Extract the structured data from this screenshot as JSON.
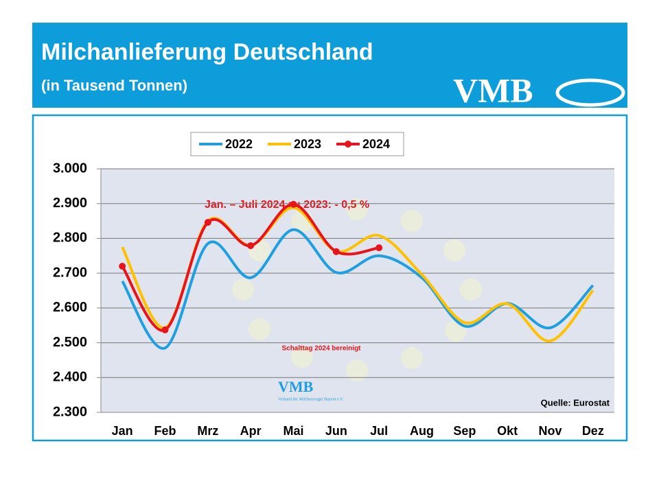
{
  "chart_data": {
    "type": "line",
    "title": "Milchanlieferung Deutschland",
    "subtitle": "(in Tausend Tonnen)",
    "logo": "VMB",
    "logo_small": "VMB",
    "logo_caption": "Verband der Milcherzeuger Bayern e.V.",
    "annotation": "Jan. – Juli 2024 zu 2023: - 0,5 %",
    "annotation_note": "Schalttag 2024 bereinigt",
    "source": "Quelle: Eurostat",
    "categories": [
      "Jan",
      "Feb",
      "Mrz",
      "Apr",
      "Mai",
      "Jun",
      "Jul",
      "Aug",
      "Sep",
      "Okt",
      "Nov",
      "Dez"
    ],
    "series": [
      {
        "name": "2022",
        "color": "#1f9ee0",
        "values": [
          2677,
          2485,
          2785,
          2687,
          2825,
          2702,
          2750,
          2687,
          2548,
          2613,
          2543,
          2665
        ]
      },
      {
        "name": "2023",
        "color": "#ffc000",
        "values": [
          2775,
          2543,
          2850,
          2780,
          2888,
          2763,
          2808,
          2696,
          2558,
          2612,
          2505,
          2651
        ]
      },
      {
        "name": "2024",
        "color": "#e8141b",
        "values": [
          2720,
          2537,
          2846,
          2779,
          2898,
          2762,
          2773,
          null,
          null,
          null,
          null,
          null
        ]
      }
    ],
    "ylim": [
      2300,
      3000
    ],
    "yticks": [
      {
        "value": 2300,
        "label": "2.300"
      },
      {
        "value": 2400,
        "label": "2.400"
      },
      {
        "value": 2500,
        "label": "2.500"
      },
      {
        "value": 2600,
        "label": "2.600"
      },
      {
        "value": 2700,
        "label": "2.700"
      },
      {
        "value": 2800,
        "label": "2.800"
      },
      {
        "value": 2900,
        "label": "2.900"
      },
      {
        "value": 3000,
        "label": "3.000"
      }
    ],
    "grid": true,
    "legend": "top"
  }
}
